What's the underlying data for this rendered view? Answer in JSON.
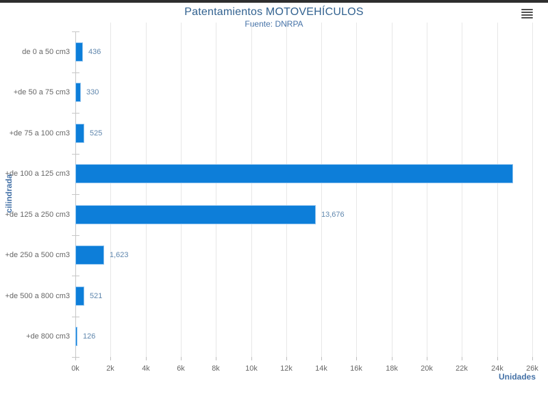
{
  "header": {
    "title": "Patentamientos MOTOVEHÍCULOS",
    "subtitle": "Fuente: DNRPA"
  },
  "menu": {
    "icon": "hamburger-icon"
  },
  "colors": {
    "bar_fill": "#0d7ed9",
    "bar_border": "#8ec2ee",
    "title_text": "#31618f",
    "subtitle_text": "#4572a7",
    "axis_title_text": "#4572a7",
    "axis_label_text": "#666666",
    "data_label_text": "#5f86ad",
    "gridline": "#e7e7e7",
    "top_border": "#2e2e2e"
  },
  "chart_data": {
    "type": "bar",
    "orientation": "horizontal",
    "title": "Patentamientos MOTOVEHÍCULOS",
    "subtitle": "Fuente: DNRPA",
    "xlabel": "Unidades",
    "ylabel": "cilindrada",
    "categories": [
      "de 0 a 50 cm3",
      "+de 50 a 75 cm3",
      "+de 75 a 100 cm3",
      "+de 100 a 125 cm3",
      "+de 125 a 250 cm3",
      "+de 250 a 500 cm3",
      "+de 500 a 800 cm3",
      "+de 800 cm3"
    ],
    "values": [
      436,
      330,
      525,
      24900,
      13676,
      1623,
      521,
      126
    ],
    "data_labels": [
      "436",
      "330",
      "525",
      "",
      "13,676",
      "1,623",
      "521",
      "126"
    ],
    "xlim": [
      0,
      26000
    ],
    "x_tick_step": 2000,
    "x_tick_labels": [
      "0k",
      "2k",
      "4k",
      "6k",
      "8k",
      "10k",
      "12k",
      "14k",
      "16k",
      "18k",
      "20k",
      "22k",
      "24k",
      "26k"
    ],
    "grid": true,
    "legend": "none"
  }
}
